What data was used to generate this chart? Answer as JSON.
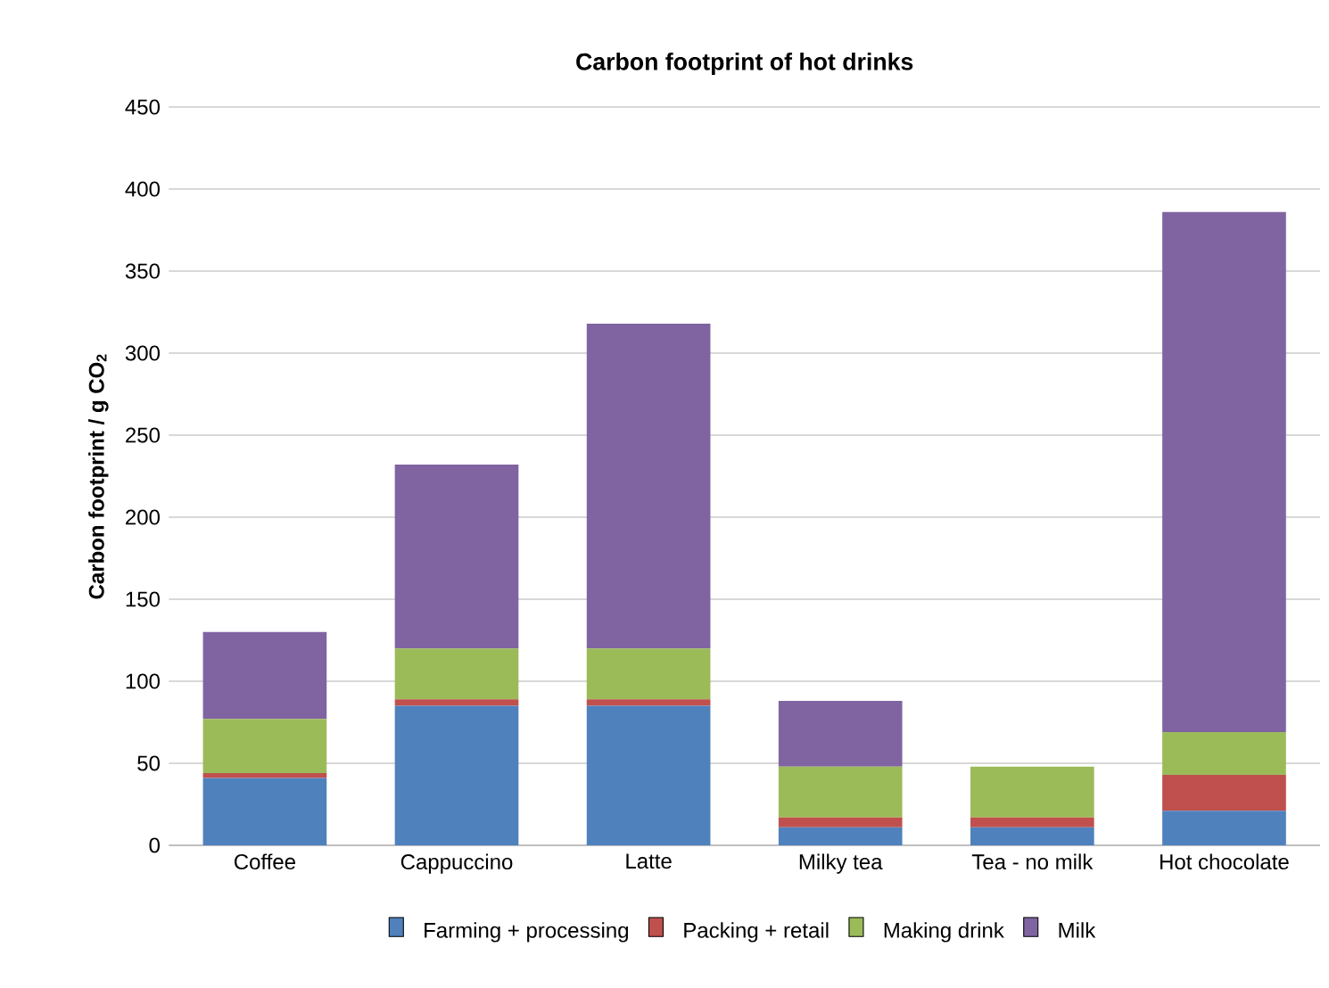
{
  "chart_data": {
    "type": "bar",
    "stacked": true,
    "title": "Carbon footprint of hot drinks",
    "ylabel": "Carbon footprint / g CO$_{2}$",
    "categories": [
      "Coffee",
      "Cappuccino",
      "Latte",
      "Milky tea",
      "Tea - no milk",
      "Hot chocolate"
    ],
    "series": [
      {
        "name": "Farming + processing",
        "color": "#4f81bd",
        "values": [
          41,
          85,
          85,
          11,
          11,
          21
        ]
      },
      {
        "name": "Packing + retail",
        "color": "#c0504d",
        "values": [
          3,
          4,
          4,
          6,
          6,
          22
        ]
      },
      {
        "name": "Making drink",
        "color": "#9bbb59",
        "values": [
          33,
          31,
          31,
          31,
          31,
          26
        ]
      },
      {
        "name": "Milk",
        "color": "#8064a2",
        "values": [
          53,
          112,
          198,
          40,
          0,
          317
        ]
      }
    ],
    "ylim": [
      0,
      450
    ],
    "yticks": [
      0,
      50,
      100,
      150,
      200,
      250,
      300,
      350,
      400,
      450
    ],
    "grid": "y",
    "legend": "bottom"
  }
}
